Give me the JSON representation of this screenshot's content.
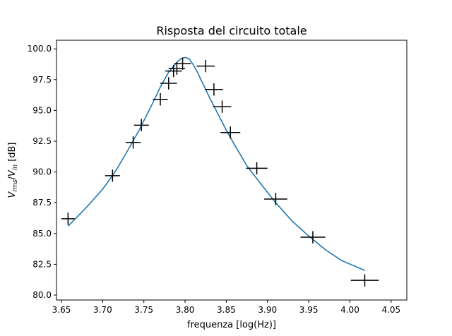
{
  "chart_data": {
    "type": "scatter",
    "title": "Risposta del circuito totale",
    "xlabel": "frequenza [log(Hz)]",
    "ylabel": {
      "base1": "V",
      "sub1": "rms",
      "sep": "/",
      "base2": "V",
      "sub2": "in",
      "unit": " [dB]"
    },
    "xlim": [
      3.644,
      4.069
    ],
    "ylim": [
      79.6,
      100.7
    ],
    "xticks": [
      "3.65",
      "3.70",
      "3.75",
      "3.80",
      "3.85",
      "3.90",
      "3.95",
      "4.00",
      "4.05"
    ],
    "yticks": [
      "80.0",
      "82.5",
      "85.0",
      "87.5",
      "90.0",
      "92.5",
      "95.0",
      "97.5",
      "100.0"
    ],
    "grid": false,
    "colors": {
      "fit": "#1f77b4",
      "points": "#000000"
    },
    "series": [
      {
        "kind": "errorbar",
        "points": [
          {
            "x": 3.658,
            "y": 86.2,
            "xerr": 0.008,
            "yerr": 0.5
          },
          {
            "x": 3.712,
            "y": 89.7,
            "xerr": 0.009,
            "yerr": 0.5
          },
          {
            "x": 3.737,
            "y": 92.4,
            "xerr": 0.009,
            "yerr": 0.5
          },
          {
            "x": 3.747,
            "y": 93.8,
            "xerr": 0.009,
            "yerr": 0.5
          },
          {
            "x": 3.77,
            "y": 95.9,
            "xerr": 0.009,
            "yerr": 0.5
          },
          {
            "x": 3.78,
            "y": 97.2,
            "xerr": 0.01,
            "yerr": 0.5
          },
          {
            "x": 3.786,
            "y": 98.2,
            "xerr": 0.01,
            "yerr": 0.5
          },
          {
            "x": 3.79,
            "y": 98.4,
            "xerr": 0.01,
            "yerr": 0.5
          },
          {
            "x": 3.797,
            "y": 98.8,
            "xerr": 0.01,
            "yerr": 0.5
          },
          {
            "x": 3.825,
            "y": 98.6,
            "xerr": 0.011,
            "yerr": 0.5
          },
          {
            "x": 3.835,
            "y": 96.7,
            "xerr": 0.011,
            "yerr": 0.5
          },
          {
            "x": 3.845,
            "y": 95.3,
            "xerr": 0.011,
            "yerr": 0.5
          },
          {
            "x": 3.855,
            "y": 93.2,
            "xerr": 0.012,
            "yerr": 0.5
          },
          {
            "x": 3.887,
            "y": 90.3,
            "xerr": 0.013,
            "yerr": 0.5
          },
          {
            "x": 3.91,
            "y": 87.8,
            "xerr": 0.014,
            "yerr": 0.5
          },
          {
            "x": 3.955,
            "y": 84.7,
            "xerr": 0.015,
            "yerr": 0.5
          },
          {
            "x": 4.018,
            "y": 81.2,
            "xerr": 0.017,
            "yerr": 0.5
          }
        ]
      },
      {
        "kind": "line",
        "x": [
          3.658,
          3.68,
          3.7,
          3.715,
          3.73,
          3.745,
          3.76,
          3.77,
          3.78,
          3.79,
          3.795,
          3.8,
          3.805,
          3.81,
          3.815,
          3.82,
          3.83,
          3.84,
          3.85,
          3.86,
          3.875,
          3.89,
          3.91,
          3.93,
          3.95,
          3.97,
          3.99,
          4.018
        ],
        "y": [
          85.6,
          87.1,
          88.6,
          90.0,
          91.7,
          93.5,
          95.5,
          96.9,
          98.1,
          98.9,
          99.2,
          99.3,
          99.2,
          98.7,
          98.1,
          97.4,
          96.0,
          94.7,
          93.4,
          92.2,
          90.5,
          89.2,
          87.5,
          86.0,
          84.8,
          83.7,
          82.8,
          82.0
        ]
      }
    ]
  }
}
